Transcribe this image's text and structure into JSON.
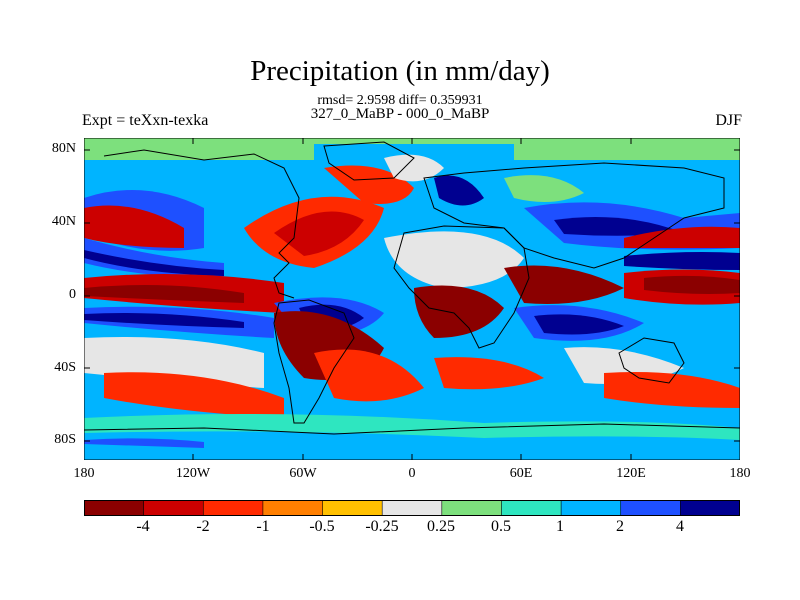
{
  "title": "Precipitation (in mm/day)",
  "stats": "rmsd= 2.9598 diff= 0.359931",
  "subtitle": "327_0_MaBP - 000_0_MaBP",
  "left_label": "Expt = teXxn-texka",
  "right_label": "DJF",
  "map": {
    "lat_labels": [
      "80N",
      "40N",
      "0",
      "40S",
      "80S"
    ],
    "lon_labels": [
      "180",
      "120W",
      "60W",
      "0",
      "60E",
      "120E",
      "180"
    ]
  },
  "colorbar": {
    "colors": [
      "#8b0000",
      "#cc0000",
      "#ff2a00",
      "#ff7f00",
      "#ffc000",
      "#e6e6e6",
      "#7de07d",
      "#2ee6c0",
      "#00b4ff",
      "#1e50ff",
      "#000090"
    ],
    "labels": [
      "-4",
      "-2",
      "-1",
      "-0.5",
      "-0.25",
      "0.25",
      "0.5",
      "1",
      "2",
      "4"
    ]
  }
}
